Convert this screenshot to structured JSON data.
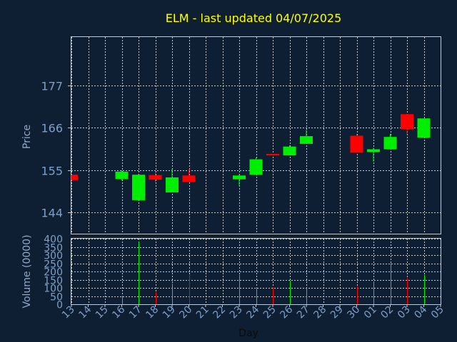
{
  "chart_data": [
    {
      "type": "candlestick",
      "title": "ELM - last updated 04/07/2025",
      "ylabel": "Price",
      "ylim": [
        138.5,
        189.5
      ],
      "yticks": [
        144,
        155,
        166,
        177
      ],
      "grid": true,
      "colors": {
        "up": "#00ee00",
        "down": "#ff0000",
        "grid": "#c8c8c8",
        "frame": "#c8c8c8"
      },
      "categories": [
        "13",
        "14",
        "15",
        "16",
        "17",
        "18",
        "19",
        "20",
        "21",
        "22",
        "23",
        "24",
        "25",
        "26",
        "27",
        "28",
        "29",
        "30",
        "01",
        "02",
        "03",
        "04",
        "05"
      ],
      "candles": [
        {
          "day": "13",
          "open": 153.8,
          "close": 152.4,
          "high": 153.8,
          "low": 152.4
        },
        {
          "day": "16",
          "open": 152.7,
          "close": 154.6,
          "high": 154.9,
          "low": 152.4
        },
        {
          "day": "17",
          "open": 147.2,
          "close": 153.8,
          "high": 154.0,
          "low": 147.2
        },
        {
          "day": "18",
          "open": 153.7,
          "close": 152.5,
          "high": 154.4,
          "low": 151.8
        },
        {
          "day": "19",
          "open": 149.2,
          "close": 153.1,
          "high": 155.3,
          "low": 149.2
        },
        {
          "day": "20",
          "open": 153.6,
          "close": 151.9,
          "high": 155.1,
          "low": 151.9
        },
        {
          "day": "23",
          "open": 152.6,
          "close": 153.6,
          "high": 153.9,
          "low": 150.9
        },
        {
          "day": "24",
          "open": 153.8,
          "close": 157.8,
          "high": 158.2,
          "low": 153.8
        },
        {
          "day": "25",
          "open": 159.2,
          "close": 158.8,
          "high": 159.2,
          "low": 158.8
        },
        {
          "day": "26",
          "open": 158.8,
          "close": 161.1,
          "high": 161.4,
          "low": 158.8
        },
        {
          "day": "27",
          "open": 161.8,
          "close": 163.8,
          "high": 165.4,
          "low": 161.8
        },
        {
          "day": "30",
          "open": 163.9,
          "close": 159.5,
          "high": 164.4,
          "low": 159.5
        },
        {
          "day": "01",
          "open": 159.7,
          "close": 160.4,
          "high": 160.8,
          "low": 157.2
        },
        {
          "day": "02",
          "open": 160.4,
          "close": 163.6,
          "high": 164.4,
          "low": 160.4
        },
        {
          "day": "03",
          "open": 169.5,
          "close": 165.6,
          "high": 169.5,
          "low": 164.4
        },
        {
          "day": "04",
          "open": 163.4,
          "close": 168.4,
          "high": 168.4,
          "low": 163.4
        }
      ]
    },
    {
      "type": "bar",
      "ylabel": "Volume (0000)",
      "xlabel": "Day",
      "ylim": [
        0,
        400
      ],
      "yticks": [
        0,
        50,
        100,
        150,
        200,
        250,
        300,
        350,
        400
      ],
      "categories": [
        "13",
        "14",
        "15",
        "16",
        "17",
        "18",
        "19",
        "20",
        "21",
        "22",
        "23",
        "24",
        "25",
        "26",
        "27",
        "28",
        "29",
        "30",
        "01",
        "02",
        "03",
        "04",
        "05"
      ],
      "volumes": [
        {
          "day": "13",
          "value": 0,
          "direction": "down"
        },
        {
          "day": "16",
          "value": 52,
          "direction": "up"
        },
        {
          "day": "17",
          "value": 380,
          "direction": "up"
        },
        {
          "day": "18",
          "value": 75,
          "direction": "down"
        },
        {
          "day": "19",
          "value": 125,
          "direction": "up"
        },
        {
          "day": "20",
          "value": 180,
          "direction": "down"
        },
        {
          "day": "23",
          "value": 180,
          "direction": "up"
        },
        {
          "day": "24",
          "value": 105,
          "direction": "up"
        },
        {
          "day": "25",
          "value": 105,
          "direction": "down"
        },
        {
          "day": "26",
          "value": 145,
          "direction": "up"
        },
        {
          "day": "27",
          "value": 100,
          "direction": "up"
        },
        {
          "day": "30",
          "value": 110,
          "direction": "down"
        },
        {
          "day": "01",
          "value": 140,
          "direction": "up"
        },
        {
          "day": "02",
          "value": 250,
          "direction": "up"
        },
        {
          "day": "03",
          "value": 160,
          "direction": "down"
        },
        {
          "day": "04",
          "value": 180,
          "direction": "up"
        }
      ]
    }
  ]
}
